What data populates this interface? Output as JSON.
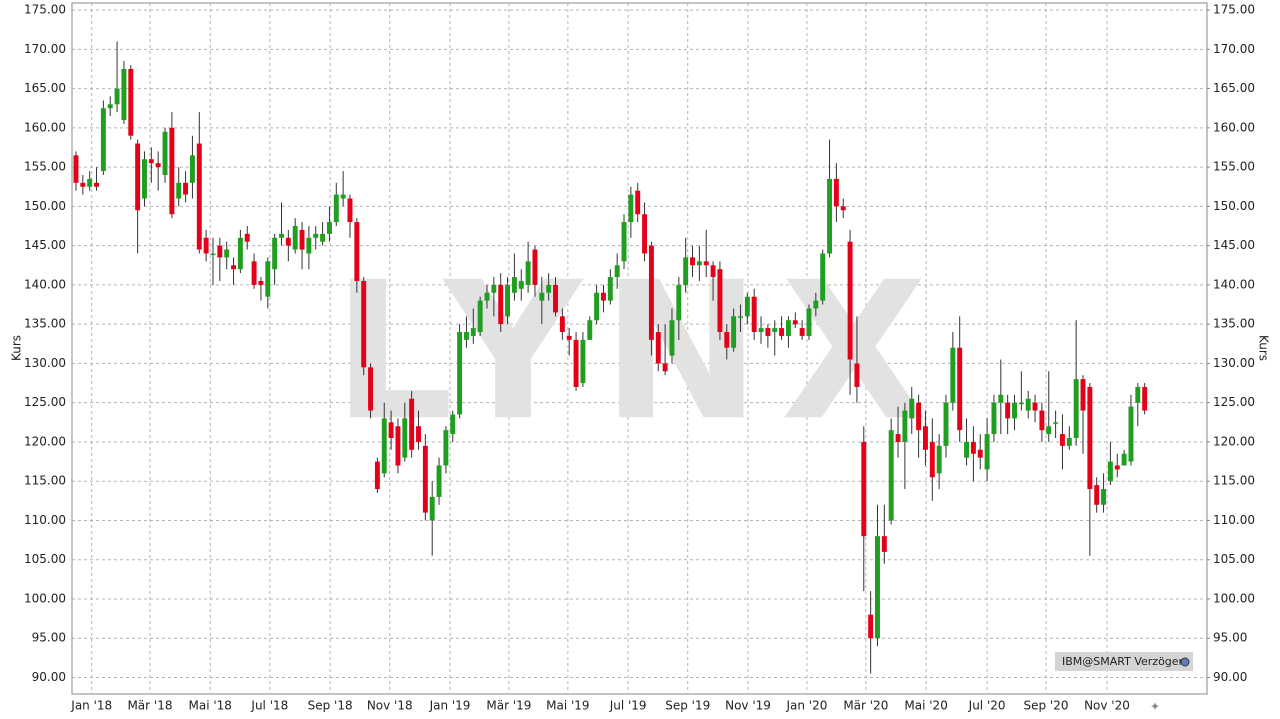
{
  "chart_data": {
    "type": "candlestick",
    "watermark": "LYNX",
    "legend_text": "IBM@SMART Verzögert",
    "ylabel": "Kurs",
    "y2label": "Kurs",
    "up_color": "#1f9e1f",
    "down_color": "#e5001a",
    "grid": true,
    "xlim": [
      -0.58,
      165.1
    ],
    "xticks": [
      {
        "value": 2.3,
        "label": "Jan '18"
      },
      {
        "value": 10.8,
        "label": "Mär '18"
      },
      {
        "value": 19.6,
        "label": "Mai '18"
      },
      {
        "value": 28.3,
        "label": "Jul '18"
      },
      {
        "value": 37.1,
        "label": "Sep '18"
      },
      {
        "value": 45.8,
        "label": "Nov '18"
      },
      {
        "value": 54.6,
        "label": "Jan '19"
      },
      {
        "value": 63.2,
        "label": "Mär '19"
      },
      {
        "value": 71.8,
        "label": "Mai '19"
      },
      {
        "value": 80.6,
        "label": "Jul '19"
      },
      {
        "value": 89.3,
        "label": "Sep '19"
      },
      {
        "value": 98.1,
        "label": "Nov '19"
      },
      {
        "value": 106.7,
        "label": "Jan '20"
      },
      {
        "value": 115.3,
        "label": "Mär '20"
      },
      {
        "value": 124.1,
        "label": "Mai '20"
      },
      {
        "value": 133,
        "label": "Jul '20"
      },
      {
        "value": 141.6,
        "label": "Sep '20"
      },
      {
        "value": 150.5,
        "label": "Nov '20"
      }
    ],
    "ylim": [
      87.9,
      175.9
    ],
    "yticks": [
      {
        "value": 175,
        "label": "175.00"
      },
      {
        "value": 170,
        "label": "170.00"
      },
      {
        "value": 165,
        "label": "165.00"
      },
      {
        "value": 160,
        "label": "160.00"
      },
      {
        "value": 155,
        "label": "155.00"
      },
      {
        "value": 150,
        "label": "150.00"
      },
      {
        "value": 145,
        "label": "145.00"
      },
      {
        "value": 140,
        "label": "140.00"
      },
      {
        "value": 135,
        "label": "135.00"
      },
      {
        "value": 130,
        "label": "130.00"
      },
      {
        "value": 125,
        "label": "125.00"
      },
      {
        "value": 120,
        "label": "120.00"
      },
      {
        "value": 115,
        "label": "115.00"
      },
      {
        "value": 110,
        "label": "110.00"
      },
      {
        "value": 105,
        "label": "105.00"
      },
      {
        "value": 100,
        "label": "100.00"
      },
      {
        "value": 95,
        "label": "95.00"
      },
      {
        "value": 90,
        "label": "90.00"
      }
    ],
    "y2lim": [
      87.9,
      175.9
    ],
    "y2ticks": [
      {
        "value": 175,
        "label": "175.00"
      },
      {
        "value": 170,
        "label": "170.00"
      },
      {
        "value": 165,
        "label": "165.00"
      },
      {
        "value": 160,
        "label": "160.00"
      },
      {
        "value": 155,
        "label": "155.00"
      },
      {
        "value": 150,
        "label": "150.00"
      },
      {
        "value": 145,
        "label": "145.00"
      },
      {
        "value": 140,
        "label": "140.00"
      },
      {
        "value": 135,
        "label": "135.00"
      },
      {
        "value": 130,
        "label": "130.00"
      },
      {
        "value": 125,
        "label": "125.00"
      },
      {
        "value": 120,
        "label": "120.00"
      },
      {
        "value": 115,
        "label": "115.00"
      },
      {
        "value": 110,
        "label": "110.00"
      },
      {
        "value": 105,
        "label": "105.00"
      },
      {
        "value": 100,
        "label": "100.00"
      },
      {
        "value": 95,
        "label": "95.00"
      },
      {
        "value": 90,
        "label": "90.00"
      }
    ],
    "open": [
      156.5,
      153,
      152.5,
      153,
      154.5,
      162.5,
      163,
      161,
      167.5,
      158,
      151,
      156,
      155.5,
      154,
      160,
      151,
      153,
      153,
      158,
      146,
      144,
      145,
      143.5,
      142.5,
      142,
      146.5,
      143,
      140.5,
      138.5,
      142,
      146,
      146,
      144.5,
      147,
      144,
      146,
      145.5,
      146.5,
      148,
      151,
      151,
      148,
      140.5,
      129.5,
      117.5,
      116,
      122.5,
      122,
      118,
      125.5,
      122,
      119.5,
      110,
      113,
      117,
      121,
      123.5,
      133,
      133.5,
      134,
      138,
      139,
      140,
      136,
      139,
      139.5,
      140,
      144.5,
      138,
      139,
      140,
      136,
      133.5,
      133,
      127.5,
      133,
      135.5,
      139,
      138,
      141,
      143,
      148,
      152,
      149,
      145,
      134,
      130,
      131,
      135.5,
      140,
      143.5,
      142.5,
      143,
      142.5,
      142,
      134,
      132,
      136,
      136,
      138.5,
      134,
      134.5,
      134,
      134.5,
      133.5,
      135.5,
      134.5,
      133.5,
      137,
      138,
      144,
      153.5,
      150,
      145.5,
      130,
      120,
      98,
      95,
      108,
      110,
      121,
      120,
      123,
      125,
      122,
      120,
      116,
      119.5,
      125,
      132,
      118,
      120,
      119,
      116.5,
      121,
      125,
      125,
      123,
      125,
      124,
      125,
      124,
      121,
      122.5,
      121,
      119.5,
      120.5,
      128,
      127,
      114.5,
      112,
      115,
      117,
      117,
      117.5,
      125,
      127
    ],
    "high": [
      157,
      154,
      154.5,
      155,
      163.5,
      164,
      171,
      168.5,
      168,
      158.5,
      157,
      157.5,
      157,
      160,
      162,
      155,
      154.5,
      159,
      162,
      147,
      146,
      146,
      145.5,
      143.5,
      147,
      147.5,
      144,
      141,
      143.5,
      146.5,
      150.5,
      147,
      148.5,
      148,
      147.5,
      147.5,
      148,
      150,
      153,
      154.5,
      151.5,
      148.5,
      141,
      130,
      118,
      125,
      124,
      123,
      125,
      126.5,
      124,
      121,
      115,
      118,
      122,
      124,
      135,
      136,
      137,
      138.5,
      140,
      141,
      141.5,
      141,
      144,
      142,
      145.5,
      145,
      141,
      141.5,
      141,
      137,
      134.5,
      134,
      134,
      136,
      140,
      140,
      142,
      144,
      149,
      152.5,
      153,
      150.5,
      145.5,
      135,
      135,
      137,
      141,
      146,
      145,
      145,
      147,
      143,
      143,
      135,
      137,
      137.5,
      139,
      139.5,
      136,
      135,
      135.5,
      136,
      136,
      136.5,
      135.5,
      137.5,
      139,
      144.5,
      158.5,
      155.5,
      151,
      147,
      136,
      122,
      101,
      112,
      112,
      123,
      124.5,
      125,
      127,
      126,
      124,
      123,
      121,
      126,
      134,
      136,
      123,
      122,
      121,
      123,
      126,
      130.5,
      126,
      126,
      129,
      126.5,
      126,
      125,
      129,
      124,
      123.5,
      122,
      135.5,
      128.5,
      127.5,
      115.5,
      116,
      120,
      118.5,
      119,
      126,
      127.5,
      127.5
    ],
    "low": [
      152,
      151.5,
      152,
      152,
      154,
      161.5,
      162,
      160.5,
      158.5,
      144,
      150,
      153,
      152,
      153,
      148.5,
      150,
      150.5,
      151,
      144,
      143,
      140,
      140.5,
      142,
      140,
      141.5,
      144.5,
      139.5,
      138,
      137,
      140,
      145,
      143,
      144,
      142,
      142,
      144.5,
      145,
      145.5,
      147.5,
      150,
      146,
      139,
      128.5,
      123,
      113.5,
      115.5,
      119,
      116,
      117.5,
      118,
      119,
      110,
      105.5,
      112,
      116,
      120,
      123,
      132,
      132.5,
      133.5,
      137,
      136,
      134,
      135,
      138,
      138,
      139,
      138.5,
      135,
      138,
      136,
      133,
      131,
      126.5,
      127,
      133,
      135,
      136.5,
      137.5,
      139.5,
      142,
      146,
      148,
      143,
      131,
      129,
      128.5,
      130,
      133,
      139,
      141,
      140.5,
      141,
      138,
      133,
      130.5,
      131.5,
      134,
      135,
      133,
      132.5,
      132,
      131,
      133,
      132,
      134.5,
      133,
      133,
      136,
      137.5,
      143.5,
      148,
      148.5,
      126,
      125,
      101,
      90.5,
      94,
      104.5,
      109.5,
      118,
      114,
      121,
      118,
      117,
      112.5,
      114,
      118,
      124,
      120,
      117,
      115,
      116.5,
      115,
      120,
      121,
      121,
      121.5,
      124,
      123,
      122.5,
      120,
      120,
      120.5,
      116.5,
      119,
      119.5,
      118.5,
      105.5,
      111,
      111,
      114.5,
      115.5,
      117,
      117,
      122,
      123.5
    ],
    "close": [
      153,
      152.5,
      153.5,
      152.5,
      162.5,
      163,
      165,
      167.5,
      159,
      149.5,
      156,
      155.5,
      155,
      159.5,
      149,
      153,
      151.5,
      156.5,
      144.5,
      144,
      144,
      143.5,
      144.5,
      142,
      146,
      145.5,
      140,
      140,
      143,
      146,
      146.5,
      145,
      147.5,
      144.5,
      146,
      146.5,
      146.5,
      148,
      151.5,
      151.5,
      148,
      140.5,
      129.5,
      124,
      114,
      123,
      120.5,
      117,
      123,
      119,
      120,
      111,
      113,
      117,
      121.5,
      123.5,
      134,
      134,
      134.5,
      138,
      139,
      140,
      135,
      140,
      141,
      140.5,
      143,
      140,
      139,
      140,
      136.5,
      134,
      133,
      127,
      133,
      135.5,
      139,
      138,
      141,
      142.5,
      148,
      151.5,
      149,
      144,
      133,
      130,
      129,
      135.5,
      140,
      143.5,
      142.5,
      143,
      142.5,
      141,
      134,
      132,
      136,
      136,
      138.5,
      134,
      134.5,
      133.5,
      134.5,
      133.5,
      135.5,
      135,
      133.5,
      137,
      138,
      144,
      153.5,
      150,
      149.5,
      130.5,
      127,
      108,
      95,
      108,
      106,
      121.5,
      120,
      124,
      125.5,
      121.5,
      119,
      115.5,
      119.5,
      125,
      132,
      121.5,
      120,
      118.5,
      118,
      121,
      125,
      126,
      123,
      125,
      125,
      125.5,
      124,
      121.5,
      122,
      122.5,
      119.5,
      120.5,
      128,
      124,
      114,
      112,
      114,
      117.5,
      116.5,
      118.5,
      124.5,
      127,
      124
    ]
  }
}
